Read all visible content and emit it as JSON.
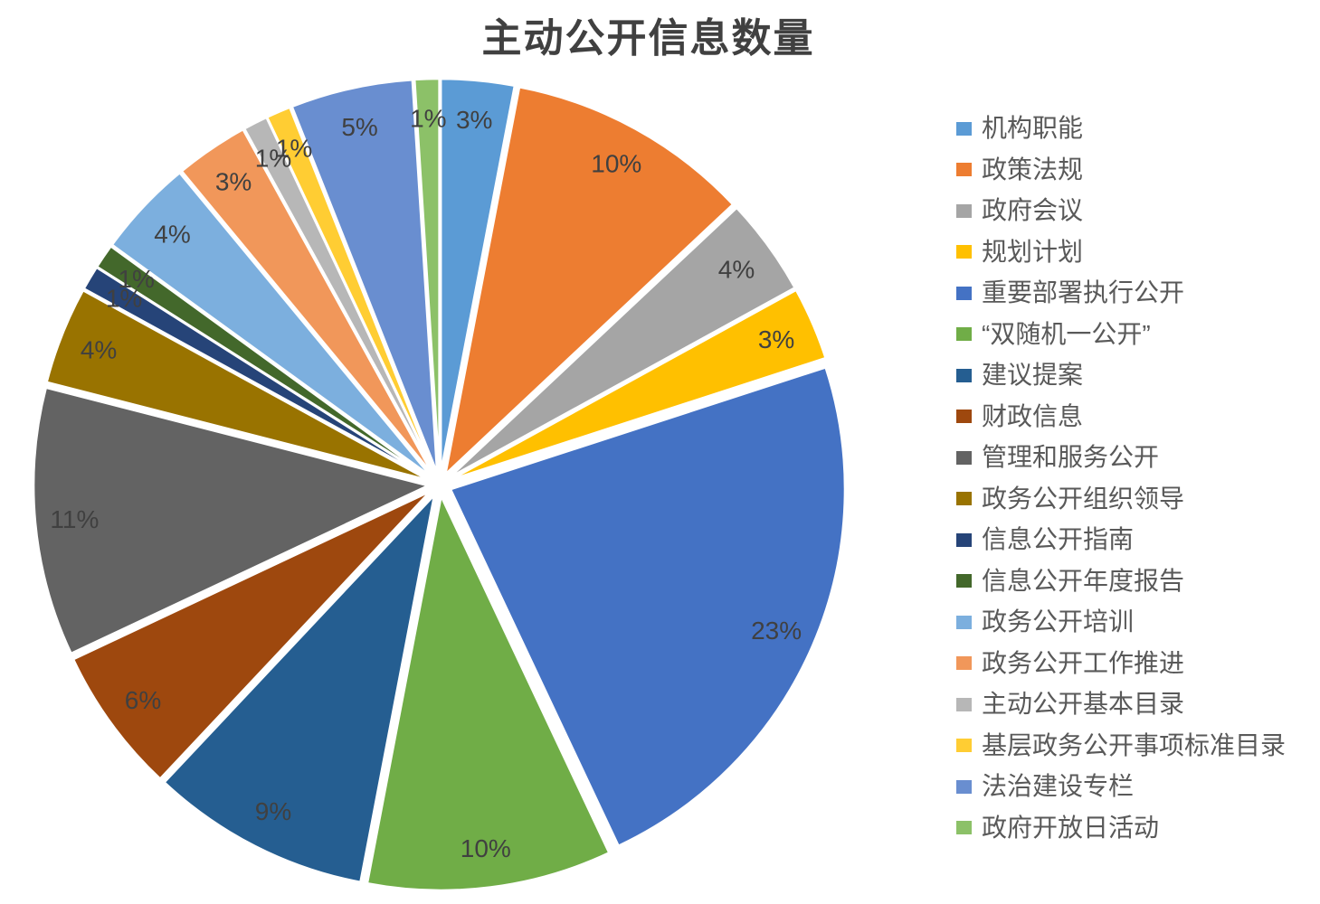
{
  "chart_data": {
    "type": "pie",
    "title": "主动公开信息数量",
    "legend_position": "right",
    "direction": "clockwise",
    "start_angle_deg": 0,
    "exploded": true,
    "title_color": "#404040",
    "data_label_color": "#404040",
    "legend_text_color": "#595959",
    "background_color": "#ffffff",
    "slices": [
      {
        "label": "机构职能",
        "value": 3,
        "percent_label": "3%",
        "color": "#5B9BD5"
      },
      {
        "label": "政策法规",
        "value": 10,
        "percent_label": "10%",
        "color": "#ED7D31"
      },
      {
        "label": "政府会议",
        "value": 4,
        "percent_label": "4%",
        "color": "#A5A5A5"
      },
      {
        "label": "规划计划",
        "value": 3,
        "percent_label": "3%",
        "color": "#FFC000"
      },
      {
        "label": "重要部署执行公开",
        "value": 23,
        "percent_label": "23%",
        "color": "#4472C4"
      },
      {
        "label": "“双随机一公开”",
        "value": 10,
        "percent_label": "10%",
        "color": "#70AD47"
      },
      {
        "label": "建议提案",
        "value": 9,
        "percent_label": "9%",
        "color": "#255E91"
      },
      {
        "label": "财政信息",
        "value": 6,
        "percent_label": "6%",
        "color": "#9E480E"
      },
      {
        "label": "管理和服务公开",
        "value": 11,
        "percent_label": "11%",
        "color": "#636363"
      },
      {
        "label": "政务公开组织领导",
        "value": 4,
        "percent_label": "4%",
        "color": "#997300"
      },
      {
        "label": "信息公开指南",
        "value": 1,
        "percent_label": "1%",
        "color": "#264478"
      },
      {
        "label": "信息公开年度报告",
        "value": 1,
        "percent_label": "1%",
        "color": "#43682B"
      },
      {
        "label": "政务公开培训",
        "value": 4,
        "percent_label": "4%",
        "color": "#7CAFDE"
      },
      {
        "label": "政务公开工作推进",
        "value": 3,
        "percent_label": "3%",
        "color": "#F1975A"
      },
      {
        "label": "主动公开基本目录",
        "value": 1,
        "percent_label": "1%",
        "color": "#B7B7B7"
      },
      {
        "label": "基层政务公开事项标准目录",
        "value": 1,
        "percent_label": "1%",
        "color": "#FFCD33"
      },
      {
        "label": "法治建设专栏",
        "value": 5,
        "percent_label": "5%",
        "color": "#698ED0"
      },
      {
        "label": "政府开放日活动",
        "value": 1,
        "percent_label": "1%",
        "color": "#8CC168"
      }
    ]
  }
}
